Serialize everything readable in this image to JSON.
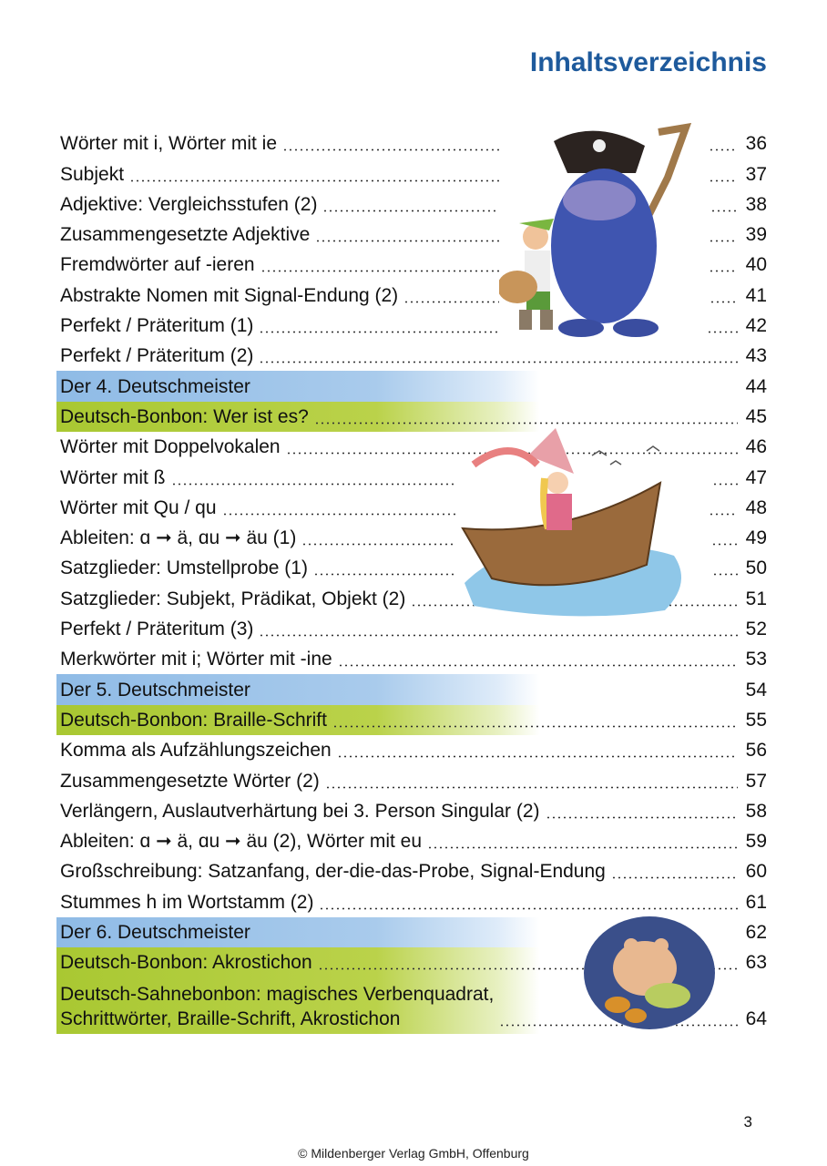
{
  "title": "Inhaltsverzeichnis",
  "colors": {
    "title": "#1e5a9c",
    "deutschmeister": "#8fbbe6",
    "bonbon": "#a9c832"
  },
  "entries": [
    {
      "label": "Wörter mit i, Wörter mit ie",
      "page": "36",
      "style": "normal"
    },
    {
      "label": "Subjekt",
      "page": "37",
      "style": "normal"
    },
    {
      "label": "Adjektive: Vergleichsstufen (2)",
      "page": "38",
      "style": "normal"
    },
    {
      "label": "Zusammengesetzte Adjektive",
      "page": "39",
      "style": "normal"
    },
    {
      "label": "Fremdwörter auf -ieren",
      "page": "40",
      "style": "normal"
    },
    {
      "label": "Abstrakte Nomen mit Signal-Endung (2)",
      "page": "41",
      "style": "normal"
    },
    {
      "label": "Perfekt / Präteritum (1)",
      "page": "42",
      "style": "normal"
    },
    {
      "label": "Perfekt / Präteritum (2)",
      "page": "43",
      "style": "normal"
    },
    {
      "label": "Der 4. Deutschmeister",
      "page": "44",
      "style": "blue"
    },
    {
      "label": "Deutsch-Bonbon: Wer ist es?",
      "page": "45",
      "style": "green"
    },
    {
      "label": "Wörter mit Doppelvokalen",
      "page": "46",
      "style": "normal"
    },
    {
      "label": "Wörter mit ß",
      "page": "47",
      "style": "normal"
    },
    {
      "label": "Wörter mit Qu / qu",
      "page": "48",
      "style": "normal"
    },
    {
      "label": "Ableiten: ɑ ➞ ä, ɑu ➞ äu (1)",
      "page": "49",
      "style": "normal"
    },
    {
      "label": "Satzglieder: Umstellprobe (1)",
      "page": "50",
      "style": "normal"
    },
    {
      "label": "Satzglieder: Subjekt, Prädikat, Objekt (2)",
      "page": "51",
      "style": "normal"
    },
    {
      "label": "Perfekt / Präteritum (3)",
      "page": "52",
      "style": "normal"
    },
    {
      "label": "Merkwörter mit i; Wörter mit -ine",
      "page": "53",
      "style": "normal"
    },
    {
      "label": "Der 5. Deutschmeister",
      "page": "54",
      "style": "blue"
    },
    {
      "label": "Deutsch-Bonbon: Braille-Schrift",
      "page": "55",
      "style": "green"
    },
    {
      "label": "Komma als Aufzählungszeichen",
      "page": "56",
      "style": "normal"
    },
    {
      "label": "Zusammengesetzte Wörter (2)",
      "page": "57",
      "style": "normal"
    },
    {
      "label": "Verlängern, Auslautverhärtung bei 3. Person Singular (2)",
      "page": "58",
      "style": "normal"
    },
    {
      "label": "Ableiten: ɑ ➞ ä, ɑu ➞ äu (2), Wörter mit eu",
      "page": "59",
      "style": "normal"
    },
    {
      "label": "Großschreibung: Satzanfang, der-die-das-Probe, Signal-Endung",
      "page": "60",
      "style": "normal"
    },
    {
      "label": "Stummes h im Wortstamm (2)",
      "page": "61",
      "style": "normal"
    },
    {
      "label": "Der 6. Deutschmeister",
      "page": "62",
      "style": "blue"
    },
    {
      "label": "Deutsch-Bonbon: Akrostichon",
      "page": "63",
      "style": "green"
    },
    {
      "label": "Deutsch-Sahnebonbon: magisches Verbenquadrat,\nSchrittwörter, Braille-Schrift, Akrostichon",
      "page": "64",
      "style": "green double"
    }
  ],
  "page_number": "3",
  "footer": "© Mildenberger Verlag GmbH, Offenburg"
}
